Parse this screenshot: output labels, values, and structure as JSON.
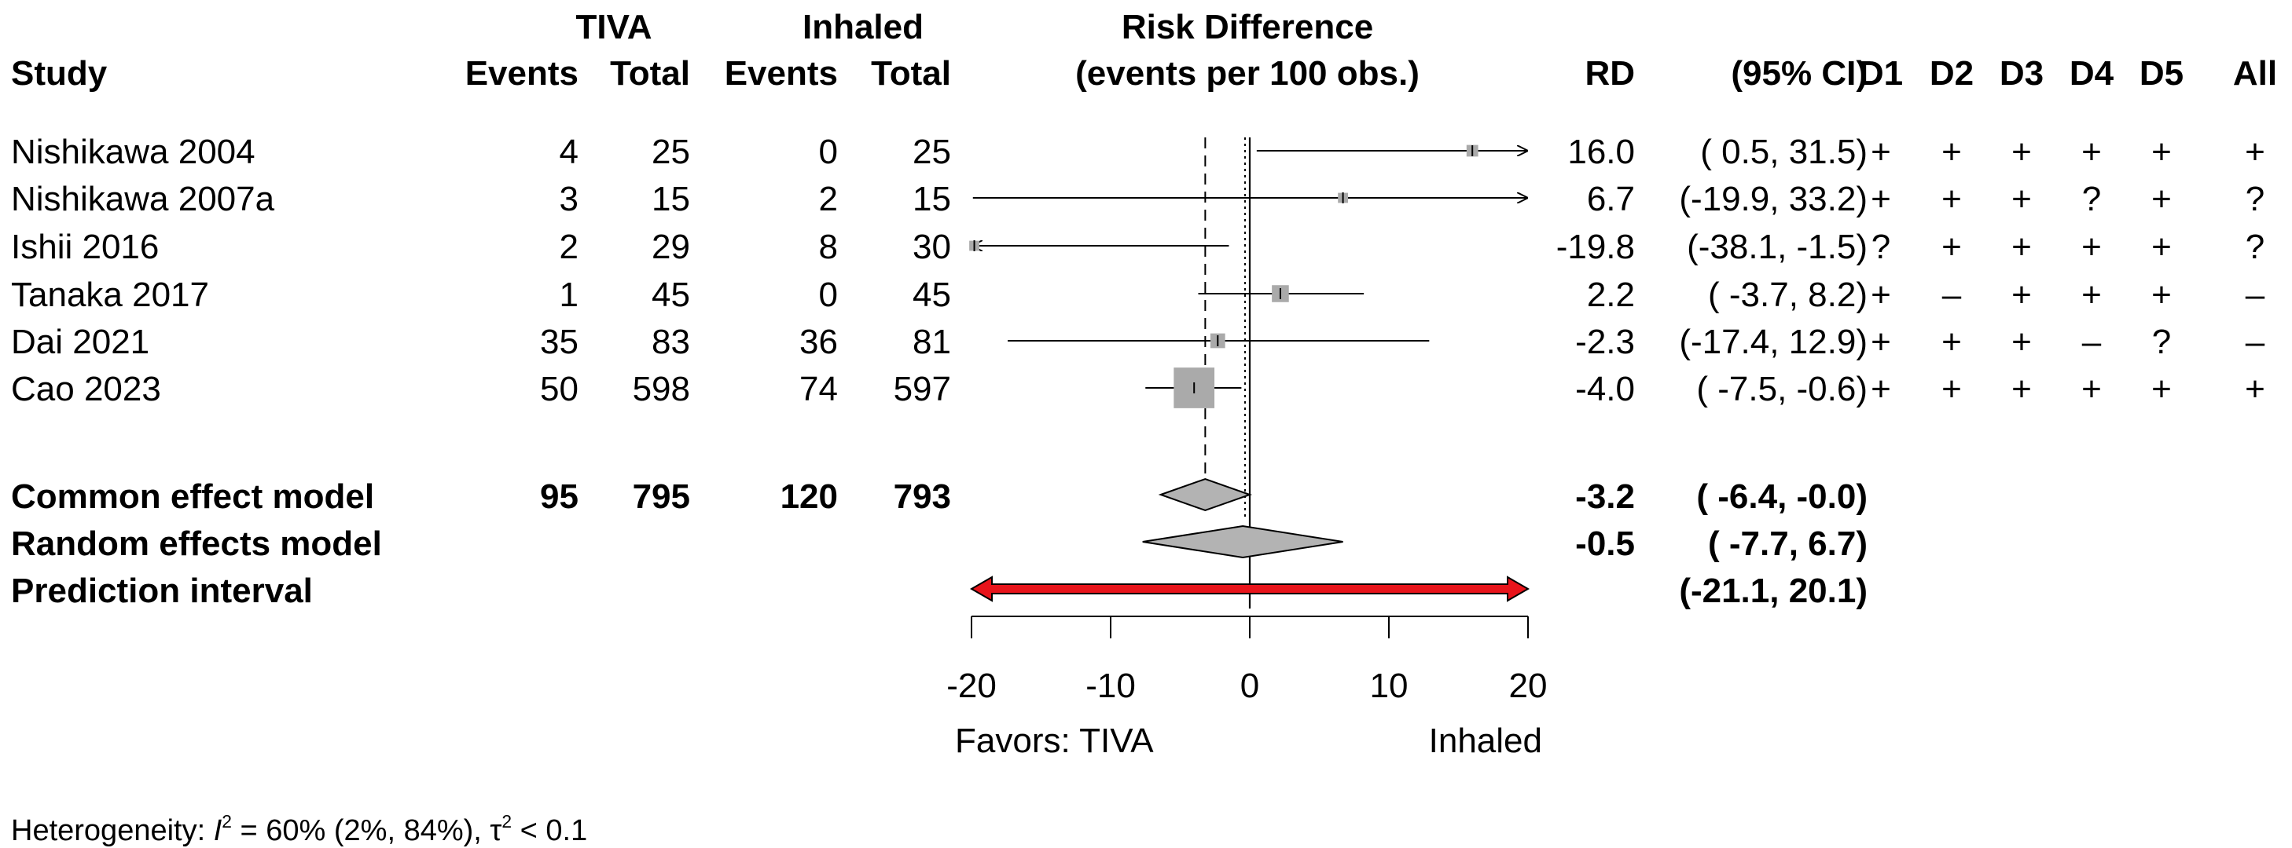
{
  "header": {
    "study": "Study",
    "group1": "TIVA",
    "group2": "Inhaled",
    "events": "Events",
    "total": "Total",
    "plot_title_1": "Risk Difference",
    "plot_title_2": "(events per 100 obs.)",
    "rd": "RD",
    "ci": "(95% CI)",
    "bias_domains": [
      "D1",
      "D2",
      "D3",
      "D4",
      "D5",
      "All"
    ]
  },
  "studies": [
    {
      "name": "Nishikawa 2004",
      "e1": "4",
      "n1": "25",
      "e2": "0",
      "n2": "25",
      "rd_text": "16.0",
      "ci_text": "( 0.5, 31.5)",
      "bias": [
        "+",
        "+",
        "+",
        "+",
        "+",
        "+"
      ]
    },
    {
      "name": "Nishikawa 2007a",
      "e1": "3",
      "n1": "15",
      "e2": "2",
      "n2": "15",
      "rd_text": "6.7",
      "ci_text": "(-19.9, 33.2)",
      "bias": [
        "+",
        "+",
        "+",
        "?",
        "+",
        "?"
      ]
    },
    {
      "name": "Ishii 2016",
      "e1": "2",
      "n1": "29",
      "e2": "8",
      "n2": "30",
      "rd_text": "-19.8",
      "ci_text": "(-38.1, -1.5)",
      "bias": [
        "?",
        "+",
        "+",
        "+",
        "+",
        "?"
      ]
    },
    {
      "name": "Tanaka 2017",
      "e1": "1",
      "n1": "45",
      "e2": "0",
      "n2": "45",
      "rd_text": "2.2",
      "ci_text": "( -3.7, 8.2)",
      "bias": [
        "+",
        "–",
        "+",
        "+",
        "+",
        "–"
      ]
    },
    {
      "name": "Dai 2021",
      "e1": "35",
      "n1": "83",
      "e2": "36",
      "n2": "81",
      "rd_text": "-2.3",
      "ci_text": "(-17.4, 12.9)",
      "bias": [
        "+",
        "+",
        "+",
        "–",
        "?",
        "–"
      ]
    },
    {
      "name": "Cao 2023",
      "e1": "50",
      "n1": "598",
      "e2": "74",
      "n2": "597",
      "rd_text": "-4.0",
      "ci_text": "( -7.5, -0.6)",
      "bias": [
        "+",
        "+",
        "+",
        "+",
        "+",
        "+"
      ]
    }
  ],
  "pooled": {
    "common": {
      "label": "Common effect model",
      "e1": "95",
      "n1": "795",
      "e2": "120",
      "n2": "793",
      "rd_text": "-3.2",
      "ci_text": "( -6.4, -0.0)"
    },
    "random": {
      "label": "Random effects model",
      "rd_text": "-0.5",
      "ci_text": "( -7.7, 6.7)"
    },
    "prediction": {
      "label": "Prediction interval",
      "ci_text": "(-21.1, 20.1)"
    }
  },
  "axis": {
    "ticks": [
      "-20",
      "-10",
      "0",
      "10",
      "20"
    ],
    "left_label": "Favors: TIVA",
    "right_label": "Inhaled"
  },
  "footer": {
    "prefix": "Heterogeneity: ",
    "i2_symbol": "I",
    "sup2": "2",
    "i2_text": " = 60% (2%, 84%), ",
    "tau_symbol": "τ",
    "tau_text": " < 0.1"
  },
  "chart_data": {
    "type": "forest",
    "xlim": [
      -20,
      20
    ],
    "ticks": [
      -20,
      -10,
      0,
      10,
      20
    ],
    "null_value": 0,
    "common_line": -3.2,
    "studies": [
      {
        "est": 16.0,
        "lo": 0.5,
        "hi": 31.5,
        "weight": 0.02
      },
      {
        "est": 6.7,
        "lo": -19.9,
        "hi": 33.2,
        "weight": 0.01
      },
      {
        "est": -19.8,
        "lo": -38.1,
        "hi": -1.5,
        "weight": 0.01
      },
      {
        "est": 2.2,
        "lo": -3.7,
        "hi": 8.2,
        "weight": 0.08
      },
      {
        "est": -2.3,
        "lo": -17.4,
        "hi": 12.9,
        "weight": 0.05
      },
      {
        "est": -4.0,
        "lo": -7.5,
        "hi": -0.6,
        "weight": 0.83
      }
    ],
    "common": {
      "est": -3.2,
      "lo": -6.4,
      "hi": -0.0
    },
    "random": {
      "est": -0.5,
      "lo": -7.7,
      "hi": 6.7
    },
    "prediction": {
      "lo": -21.1,
      "hi": 20.1
    },
    "colors": {
      "box": "#aaaaaa",
      "diamond": "#b3b3b3",
      "prediction": "#e8141b"
    }
  }
}
